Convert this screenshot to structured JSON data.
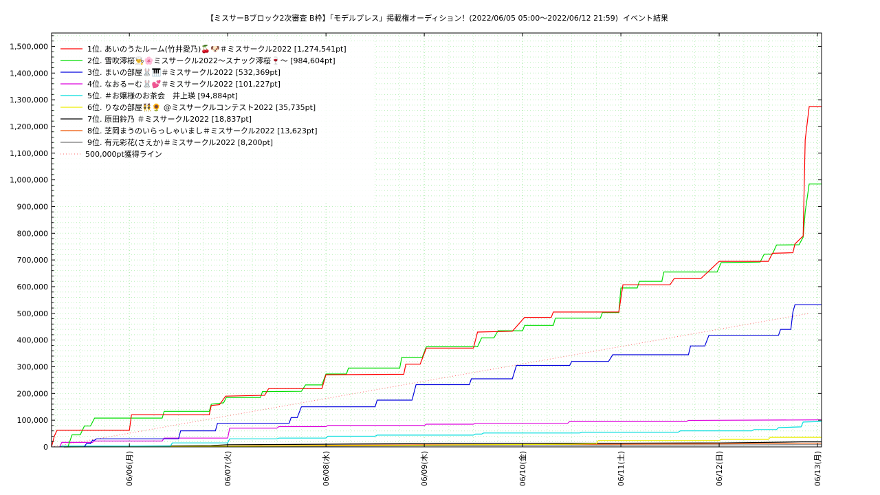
{
  "chart_data": {
    "type": "line",
    "title": "【ミスサーBブロック2次審査 B枠】「モデルプレス」掲載権オーディション！(2022/06/05 05:00〜2022/06/12 21:59)",
    "subtitle": "イベント結果",
    "xlabel": "",
    "ylabel": "",
    "x_start": "2022-06-05T05:00",
    "x_end": "2022-06-13T01:00",
    "ylim": [
      0,
      1550000
    ],
    "y_ticks": [
      0,
      100000,
      200000,
      300000,
      400000,
      500000,
      600000,
      700000,
      800000,
      900000,
      1000000,
      1100000,
      1200000,
      1300000,
      1400000,
      1500000
    ],
    "y_tick_labels": [
      "0",
      "100,000",
      "200,000",
      "300,000",
      "400,000",
      "500,000",
      "600,000",
      "700,000",
      "800,000",
      "900,000",
      "1,000,000",
      "1,100,000",
      "1,200,000",
      "1,300,000",
      "1,400,000",
      "1,500,000"
    ],
    "x_ticks": [
      "2022-06-06T00:00",
      "2022-06-07T00:00",
      "2022-06-08T00:00",
      "2022-06-09T00:00",
      "2022-06-10T00:00",
      "2022-06-11T00:00",
      "2022-06-12T00:00",
      "2022-06-13T00:00"
    ],
    "x_tick_labels": [
      "06/06(月)",
      "06/07(火)",
      "06/08(水)",
      "06/09(木)",
      "06/10(金)",
      "06/11(土)",
      "06/12(日)",
      "06/13(月)"
    ],
    "grid": true,
    "legend_position": "top-left",
    "series": [
      {
        "name": "1位. あいのうたルーム(竹井愛乃)🍒🐶＃ミスサークル2022 [1,274,541pt]",
        "color": "#ff0000",
        "points": [
          [
            "2022-06-05T05:00",
            0
          ],
          [
            "2022-06-05T05:40",
            40000
          ],
          [
            "2022-06-05T06:20",
            62000
          ],
          [
            "2022-06-06T00:00",
            62000
          ],
          [
            "2022-06-06T00:30",
            120000
          ],
          [
            "2022-06-06T19:30",
            120000
          ],
          [
            "2022-06-06T20:00",
            155000
          ],
          [
            "2022-06-06T22:00",
            158000
          ],
          [
            "2022-06-06T23:30",
            190000
          ],
          [
            "2022-06-07T09:00",
            193000
          ],
          [
            "2022-06-07T10:00",
            218000
          ],
          [
            "2022-06-07T23:00",
            218000
          ],
          [
            "2022-06-08T00:00",
            270000
          ],
          [
            "2022-06-08T19:00",
            272000
          ],
          [
            "2022-06-08T19:30",
            310000
          ],
          [
            "2022-06-08T23:00",
            310000
          ],
          [
            "2022-06-09T00:30",
            370000
          ],
          [
            "2022-06-09T12:00",
            370000
          ],
          [
            "2022-06-09T13:00",
            430000
          ],
          [
            "2022-06-09T21:30",
            433000
          ],
          [
            "2022-06-10T00:30",
            485000
          ],
          [
            "2022-06-10T07:00",
            485000
          ],
          [
            "2022-06-10T07:30",
            505000
          ],
          [
            "2022-06-10T23:30",
            505000
          ],
          [
            "2022-06-11T00:30",
            607000
          ],
          [
            "2022-06-11T12:00",
            607000
          ],
          [
            "2022-06-11T13:00",
            630000
          ],
          [
            "2022-06-11T19:30",
            630000
          ],
          [
            "2022-06-12T00:00",
            695000
          ],
          [
            "2022-06-12T12:00",
            695000
          ],
          [
            "2022-06-12T13:00",
            725000
          ],
          [
            "2022-06-12T18:00",
            727000
          ],
          [
            "2022-06-12T18:30",
            760000
          ],
          [
            "2022-06-12T20:30",
            790000
          ],
          [
            "2022-06-12T21:00",
            1150000
          ],
          [
            "2022-06-12T21:59",
            1274541
          ],
          [
            "2022-06-13T01:00",
            1274541
          ]
        ]
      },
      {
        "name": "2位. 雪吹澪桜👨‍🍳🌸ミスサークル2022〜スナック澪桜🍷〜 [984,604pt]",
        "color": "#00dd00",
        "points": [
          [
            "2022-06-05T09:00",
            0
          ],
          [
            "2022-06-05T10:00",
            45000
          ],
          [
            "2022-06-05T12:00",
            45000
          ],
          [
            "2022-06-05T13:00",
            78000
          ],
          [
            "2022-06-05T14:30",
            78000
          ],
          [
            "2022-06-05T15:30",
            108000
          ],
          [
            "2022-06-06T08:00",
            108000
          ],
          [
            "2022-06-06T08:30",
            133000
          ],
          [
            "2022-06-06T19:30",
            133000
          ],
          [
            "2022-06-06T20:00",
            160000
          ],
          [
            "2022-06-06T23:00",
            165000
          ],
          [
            "2022-06-06T23:40",
            185000
          ],
          [
            "2022-06-07T08:00",
            185000
          ],
          [
            "2022-06-07T08:30",
            207000
          ],
          [
            "2022-06-07T18:00",
            208000
          ],
          [
            "2022-06-07T19:00",
            232000
          ],
          [
            "2022-06-07T23:00",
            232000
          ],
          [
            "2022-06-08T00:00",
            273000
          ],
          [
            "2022-06-08T05:00",
            273000
          ],
          [
            "2022-06-08T05:30",
            295000
          ],
          [
            "2022-06-08T18:00",
            295000
          ],
          [
            "2022-06-08T18:30",
            335000
          ],
          [
            "2022-06-08T23:30",
            335000
          ],
          [
            "2022-06-09T00:30",
            375000
          ],
          [
            "2022-06-09T13:00",
            375000
          ],
          [
            "2022-06-09T14:00",
            408000
          ],
          [
            "2022-06-09T17:00",
            408000
          ],
          [
            "2022-06-09T18:00",
            435000
          ],
          [
            "2022-06-10T00:00",
            435000
          ],
          [
            "2022-06-10T00:30",
            455000
          ],
          [
            "2022-06-10T07:30",
            455000
          ],
          [
            "2022-06-10T08:00",
            482000
          ],
          [
            "2022-06-10T19:00",
            482000
          ],
          [
            "2022-06-10T19:30",
            503000
          ],
          [
            "2022-06-10T23:30",
            503000
          ],
          [
            "2022-06-11T00:00",
            595000
          ],
          [
            "2022-06-11T04:00",
            595000
          ],
          [
            "2022-06-11T04:30",
            620000
          ],
          [
            "2022-06-11T10:00",
            620000
          ],
          [
            "2022-06-11T10:30",
            655000
          ],
          [
            "2022-06-11T23:30",
            655000
          ],
          [
            "2022-06-12T00:30",
            690000
          ],
          [
            "2022-06-12T10:00",
            692000
          ],
          [
            "2022-06-12T11:00",
            722000
          ],
          [
            "2022-06-12T13:00",
            722000
          ],
          [
            "2022-06-12T14:00",
            756000
          ],
          [
            "2022-06-12T19:30",
            757000
          ],
          [
            "2022-06-12T20:30",
            785000
          ],
          [
            "2022-06-12T21:00",
            880000
          ],
          [
            "2022-06-12T21:59",
            984604
          ],
          [
            "2022-06-13T01:00",
            984604
          ]
        ]
      },
      {
        "name": "3位. まいの部屋🐰🎹＃ミスサークル2022 [532,369pt]",
        "color": "#0000dd",
        "points": [
          [
            "2022-06-05T13:00",
            0
          ],
          [
            "2022-06-05T13:30",
            12000
          ],
          [
            "2022-06-05T14:30",
            12000
          ],
          [
            "2022-06-05T15:00",
            25000
          ],
          [
            "2022-06-05T15:30",
            25000
          ],
          [
            "2022-06-05T16:00",
            30000
          ],
          [
            "2022-06-06T12:00",
            30000
          ],
          [
            "2022-06-06T12:30",
            60000
          ],
          [
            "2022-06-06T21:00",
            60000
          ],
          [
            "2022-06-06T21:30",
            88000
          ],
          [
            "2022-06-07T15:00",
            88000
          ],
          [
            "2022-06-07T15:30",
            110000
          ],
          [
            "2022-06-07T17:00",
            110000
          ],
          [
            "2022-06-07T18:00",
            150000
          ],
          [
            "2022-06-08T12:00",
            150000
          ],
          [
            "2022-06-08T12:30",
            175000
          ],
          [
            "2022-06-08T21:00",
            175000
          ],
          [
            "2022-06-08T22:00",
            233000
          ],
          [
            "2022-06-09T11:00",
            233000
          ],
          [
            "2022-06-09T11:30",
            255000
          ],
          [
            "2022-06-09T21:30",
            255000
          ],
          [
            "2022-06-09T22:30",
            305000
          ],
          [
            "2022-06-10T11:30",
            305000
          ],
          [
            "2022-06-10T12:00",
            320000
          ],
          [
            "2022-06-10T21:00",
            320000
          ],
          [
            "2022-06-10T22:00",
            345000
          ],
          [
            "2022-06-11T16:30",
            345000
          ],
          [
            "2022-06-11T17:00",
            378000
          ],
          [
            "2022-06-11T20:30",
            378000
          ],
          [
            "2022-06-11T21:30",
            418000
          ],
          [
            "2022-06-12T14:30",
            418000
          ],
          [
            "2022-06-12T15:00",
            440000
          ],
          [
            "2022-06-12T17:30",
            440000
          ],
          [
            "2022-06-12T18:00",
            505000
          ],
          [
            "2022-06-12T18:30",
            532369
          ],
          [
            "2022-06-13T01:00",
            532369
          ]
        ]
      },
      {
        "name": "4位. なおるーむ🐰💕＃ミスサークル2022 [101,227pt]",
        "color": "#dd00dd",
        "points": [
          [
            "2022-06-05T07:00",
            0
          ],
          [
            "2022-06-05T07:30",
            17000
          ],
          [
            "2022-06-05T15:00",
            17000
          ],
          [
            "2022-06-05T15:30",
            22000
          ],
          [
            "2022-06-06T08:00",
            22000
          ],
          [
            "2022-06-06T08:30",
            33000
          ],
          [
            "2022-06-07T00:00",
            33000
          ],
          [
            "2022-06-07T00:30",
            70000
          ],
          [
            "2022-06-07T12:00",
            70000
          ],
          [
            "2022-06-07T12:30",
            76000
          ],
          [
            "2022-06-08T00:00",
            76000
          ],
          [
            "2022-06-08T00:30",
            80000
          ],
          [
            "2022-06-09T00:00",
            80000
          ],
          [
            "2022-06-09T00:30",
            85000
          ],
          [
            "2022-06-09T12:00",
            85000
          ],
          [
            "2022-06-09T12:30",
            88000
          ],
          [
            "2022-06-10T11:00",
            88000
          ],
          [
            "2022-06-10T11:30",
            95000
          ],
          [
            "2022-06-11T16:00",
            95000
          ],
          [
            "2022-06-11T16:30",
            99000
          ],
          [
            "2022-06-13T01:00",
            101227
          ]
        ]
      },
      {
        "name": "5位. ＃お嬢様のお茶会　井上瑛 [94,884pt]",
        "color": "#00dddd",
        "points": [
          [
            "2022-06-05T07:00",
            0
          ],
          [
            "2022-06-05T07:30",
            3000
          ],
          [
            "2022-06-06T10:00",
            3000
          ],
          [
            "2022-06-06T10:30",
            15000
          ],
          [
            "2022-06-07T00:00",
            15000
          ],
          [
            "2022-06-07T00:30",
            30000
          ],
          [
            "2022-06-07T12:00",
            30000
          ],
          [
            "2022-06-07T12:30",
            33000
          ],
          [
            "2022-06-08T00:00",
            33000
          ],
          [
            "2022-06-08T00:30",
            40000
          ],
          [
            "2022-06-08T12:00",
            40000
          ],
          [
            "2022-06-08T12:30",
            44000
          ],
          [
            "2022-06-09T12:00",
            44000
          ],
          [
            "2022-06-09T12:30",
            48000
          ],
          [
            "2022-06-09T14:00",
            48000
          ],
          [
            "2022-06-09T14:30",
            52000
          ],
          [
            "2022-06-10T14:00",
            52000
          ],
          [
            "2022-06-10T14:30",
            55000
          ],
          [
            "2022-06-11T14:00",
            55000
          ],
          [
            "2022-06-11T14:30",
            60000
          ],
          [
            "2022-06-12T08:00",
            60000
          ],
          [
            "2022-06-12T08:30",
            65000
          ],
          [
            "2022-06-12T14:00",
            65000
          ],
          [
            "2022-06-12T14:30",
            72000
          ],
          [
            "2022-06-12T20:00",
            75000
          ],
          [
            "2022-06-12T20:30",
            93000
          ],
          [
            "2022-06-13T01:00",
            94884
          ]
        ]
      },
      {
        "name": "6位. りなの部屋👯🌻 @ミスサークルコンテスト2022 [35,735pt]",
        "color": "#eeee00",
        "points": [
          [
            "2022-06-05T10:00",
            0
          ],
          [
            "2022-06-08T12:00",
            5000
          ],
          [
            "2022-06-09T12:00",
            8000
          ],
          [
            "2022-06-10T12:00",
            10000
          ],
          [
            "2022-06-10T18:00",
            12000
          ],
          [
            "2022-06-10T18:30",
            24000
          ],
          [
            "2022-06-12T00:00",
            24000
          ],
          [
            "2022-06-12T00:30",
            28000
          ],
          [
            "2022-06-12T12:00",
            28000
          ],
          [
            "2022-06-12T12:30",
            35735
          ],
          [
            "2022-06-13T01:00",
            35735
          ]
        ]
      },
      {
        "name": "7位. 原田鈴乃 ＃ミスサークル2022 [18,837pt]",
        "color": "#000000",
        "points": [
          [
            "2022-06-05T08:00",
            0
          ],
          [
            "2022-06-06T20:00",
            5000
          ],
          [
            "2022-06-07T00:00",
            8000
          ],
          [
            "2022-06-08T00:00",
            10000
          ],
          [
            "2022-06-09T00:00",
            12000
          ],
          [
            "2022-06-10T00:00",
            13000
          ],
          [
            "2022-06-11T00:00",
            14000
          ],
          [
            "2022-06-12T00:00",
            15000
          ],
          [
            "2022-06-12T20:00",
            18837
          ],
          [
            "2022-06-13T01:00",
            18837
          ]
        ]
      },
      {
        "name": "8位. 芝岡まうのいらっしゃいまし＃ミスサークル2022 [13,623pt]",
        "color": "#ee5500",
        "points": [
          [
            "2022-06-05T08:00",
            0
          ],
          [
            "2022-06-07T00:00",
            3000
          ],
          [
            "2022-06-08T00:00",
            6000
          ],
          [
            "2022-06-09T00:00",
            8000
          ],
          [
            "2022-06-10T00:00",
            9000
          ],
          [
            "2022-06-11T00:00",
            10000
          ],
          [
            "2022-06-12T00:00",
            11000
          ],
          [
            "2022-06-12T20:00",
            13623
          ],
          [
            "2022-06-13T01:00",
            13623
          ]
        ]
      },
      {
        "name": "9位. 有元彩花(さえか)＃ミスサークル2022 [8,200pt]",
        "color": "#777777",
        "points": [
          [
            "2022-06-05T08:00",
            0
          ],
          [
            "2022-06-07T00:00",
            2000
          ],
          [
            "2022-06-09T00:00",
            4000
          ],
          [
            "2022-06-11T00:00",
            6000
          ],
          [
            "2022-06-12T20:00",
            8200
          ],
          [
            "2022-06-13T01:00",
            8200
          ]
        ]
      }
    ],
    "reference_line": {
      "name": "500,000pt獲得ライン",
      "color": "#ff6666",
      "points": [
        [
          "2022-06-05T05:00",
          0
        ],
        [
          "2022-06-12T21:59",
          500000
        ]
      ]
    }
  }
}
